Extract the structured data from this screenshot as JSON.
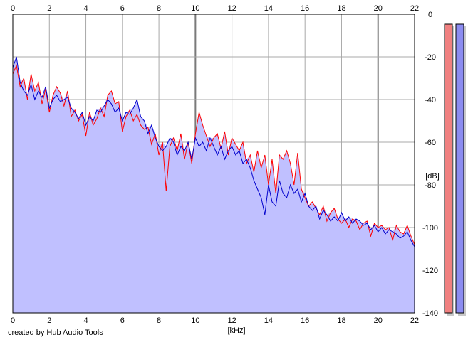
{
  "credit": "created by Hub Audio Tools",
  "colors": {
    "background": "#ffffff",
    "grid": "#a8a8a8",
    "grid_major": "#7a7a7a",
    "fill": "#c0c0ff",
    "red": "#ff0000",
    "blue": "#0000cc",
    "meter_left": "#f08080",
    "meter_right": "#8c8cf0",
    "meter_shadow": "#c8c8c8"
  },
  "chart_data": {
    "type": "line",
    "title": "",
    "xlabel": "[kHz]",
    "ylabel": "[dB]",
    "xlim": [
      0,
      22
    ],
    "ylim": [
      -140,
      0
    ],
    "xticks": [
      0,
      2,
      4,
      6,
      8,
      10,
      12,
      14,
      16,
      18,
      20,
      22
    ],
    "yticks": [
      0,
      -20,
      -40,
      -60,
      -80,
      -100,
      -120,
      -140
    ],
    "grid": true,
    "legend": "none",
    "series": [
      {
        "color": "#ff0000",
        "x": [
          0,
          0.2,
          0.4,
          0.6,
          0.8,
          1.0,
          1.2,
          1.4,
          1.6,
          1.8,
          2.0,
          2.2,
          2.4,
          2.6,
          2.8,
          3.0,
          3.2,
          3.4,
          3.6,
          3.8,
          4.0,
          4.2,
          4.4,
          4.6,
          4.8,
          5.0,
          5.2,
          5.4,
          5.6,
          5.8,
          6.0,
          6.2,
          6.4,
          6.6,
          6.8,
          7.0,
          7.2,
          7.4,
          7.6,
          7.8,
          8.0,
          8.2,
          8.4,
          8.6,
          8.8,
          9.0,
          9.2,
          9.4,
          9.6,
          9.8,
          10.0,
          10.2,
          10.4,
          10.6,
          10.8,
          11.0,
          11.2,
          11.4,
          11.6,
          11.8,
          12.0,
          12.2,
          12.4,
          12.6,
          12.8,
          13.0,
          13.2,
          13.4,
          13.6,
          13.8,
          14.0,
          14.2,
          14.4,
          14.6,
          14.8,
          15.0,
          15.2,
          15.4,
          15.6,
          15.8,
          16.0,
          16.2,
          16.4,
          16.6,
          16.8,
          17.0,
          17.2,
          17.4,
          17.6,
          17.8,
          18.0,
          18.2,
          18.4,
          18.6,
          18.8,
          19.0,
          19.2,
          19.4,
          19.6,
          19.8,
          20.0,
          20.2,
          20.4,
          20.6,
          20.8,
          21.0,
          21.2,
          21.4,
          21.6,
          21.8,
          22.0
        ],
        "y": [
          -28,
          -24,
          -34,
          -30,
          -40,
          -28,
          -36,
          -32,
          -42,
          -35,
          -46,
          -38,
          -34,
          -37,
          -43,
          -36,
          -48,
          -45,
          -50,
          -47,
          -57,
          -46,
          -52,
          -49,
          -44,
          -48,
          -38,
          -36,
          -42,
          -41,
          -55,
          -48,
          -45,
          -50,
          -47,
          -52,
          -54,
          -53,
          -61,
          -56,
          -66,
          -60,
          -83,
          -62,
          -58,
          -64,
          -56,
          -68,
          -60,
          -70,
          -56,
          -46,
          -52,
          -57,
          -62,
          -58,
          -56,
          -63,
          -55,
          -66,
          -58,
          -61,
          -64,
          -60,
          -70,
          -66,
          -74,
          -64,
          -72,
          -66,
          -80,
          -68,
          -84,
          -66,
          -68,
          -64,
          -70,
          -80,
          -65,
          -82,
          -86,
          -90,
          -88,
          -91,
          -94,
          -90,
          -97,
          -93,
          -91,
          -96,
          -98,
          -96,
          -100,
          -96,
          -97,
          -101,
          -98,
          -97,
          -104,
          -98,
          -100,
          -99,
          -101,
          -100,
          -106,
          -99,
          -102,
          -103,
          -99,
          -104,
          -108
        ]
      },
      {
        "color": "#0000cc",
        "x": [
          0,
          0.2,
          0.4,
          0.6,
          0.8,
          1.0,
          1.2,
          1.4,
          1.6,
          1.8,
          2.0,
          2.2,
          2.4,
          2.6,
          2.8,
          3.0,
          3.2,
          3.4,
          3.6,
          3.8,
          4.0,
          4.2,
          4.4,
          4.6,
          4.8,
          5.0,
          5.2,
          5.4,
          5.6,
          5.8,
          6.0,
          6.2,
          6.4,
          6.6,
          6.8,
          7.0,
          7.2,
          7.4,
          7.6,
          7.8,
          8.0,
          8.2,
          8.4,
          8.6,
          8.8,
          9.0,
          9.2,
          9.4,
          9.6,
          9.8,
          10.0,
          10.2,
          10.4,
          10.6,
          10.8,
          11.0,
          11.2,
          11.4,
          11.6,
          11.8,
          12.0,
          12.2,
          12.4,
          12.6,
          12.8,
          13.0,
          13.2,
          13.4,
          13.6,
          13.8,
          14.0,
          14.2,
          14.4,
          14.6,
          14.8,
          15.0,
          15.2,
          15.4,
          15.6,
          15.8,
          16.0,
          16.2,
          16.4,
          16.6,
          16.8,
          17.0,
          17.2,
          17.4,
          17.6,
          17.8,
          18.0,
          18.2,
          18.4,
          18.6,
          18.8,
          19.0,
          19.2,
          19.4,
          19.6,
          19.8,
          20.0,
          20.2,
          20.4,
          20.6,
          20.8,
          21.0,
          21.2,
          21.4,
          21.6,
          21.8,
          22.0
        ],
        "y": [
          -25,
          -20,
          -32,
          -36,
          -38,
          -33,
          -40,
          -36,
          -39,
          -34,
          -44,
          -40,
          -38,
          -41,
          -40,
          -39,
          -44,
          -46,
          -49,
          -46,
          -52,
          -48,
          -50,
          -45,
          -46,
          -43,
          -40,
          -42,
          -46,
          -44,
          -50,
          -46,
          -47,
          -44,
          -40,
          -48,
          -50,
          -56,
          -52,
          -58,
          -62,
          -64,
          -62,
          -58,
          -60,
          -66,
          -62,
          -64,
          -60,
          -68,
          -58,
          -62,
          -60,
          -64,
          -58,
          -62,
          -66,
          -62,
          -68,
          -64,
          -62,
          -66,
          -64,
          -70,
          -68,
          -72,
          -78,
          -82,
          -86,
          -94,
          -80,
          -88,
          -90,
          -78,
          -84,
          -86,
          -80,
          -84,
          -82,
          -88,
          -84,
          -90,
          -92,
          -90,
          -96,
          -92,
          -94,
          -97,
          -95,
          -97,
          -93,
          -97,
          -95,
          -98,
          -96,
          -97,
          -99,
          -98,
          -101,
          -99,
          -102,
          -100,
          -103,
          -101,
          -102,
          -103,
          -105,
          -104,
          -102,
          -106,
          -109
        ]
      }
    ]
  }
}
